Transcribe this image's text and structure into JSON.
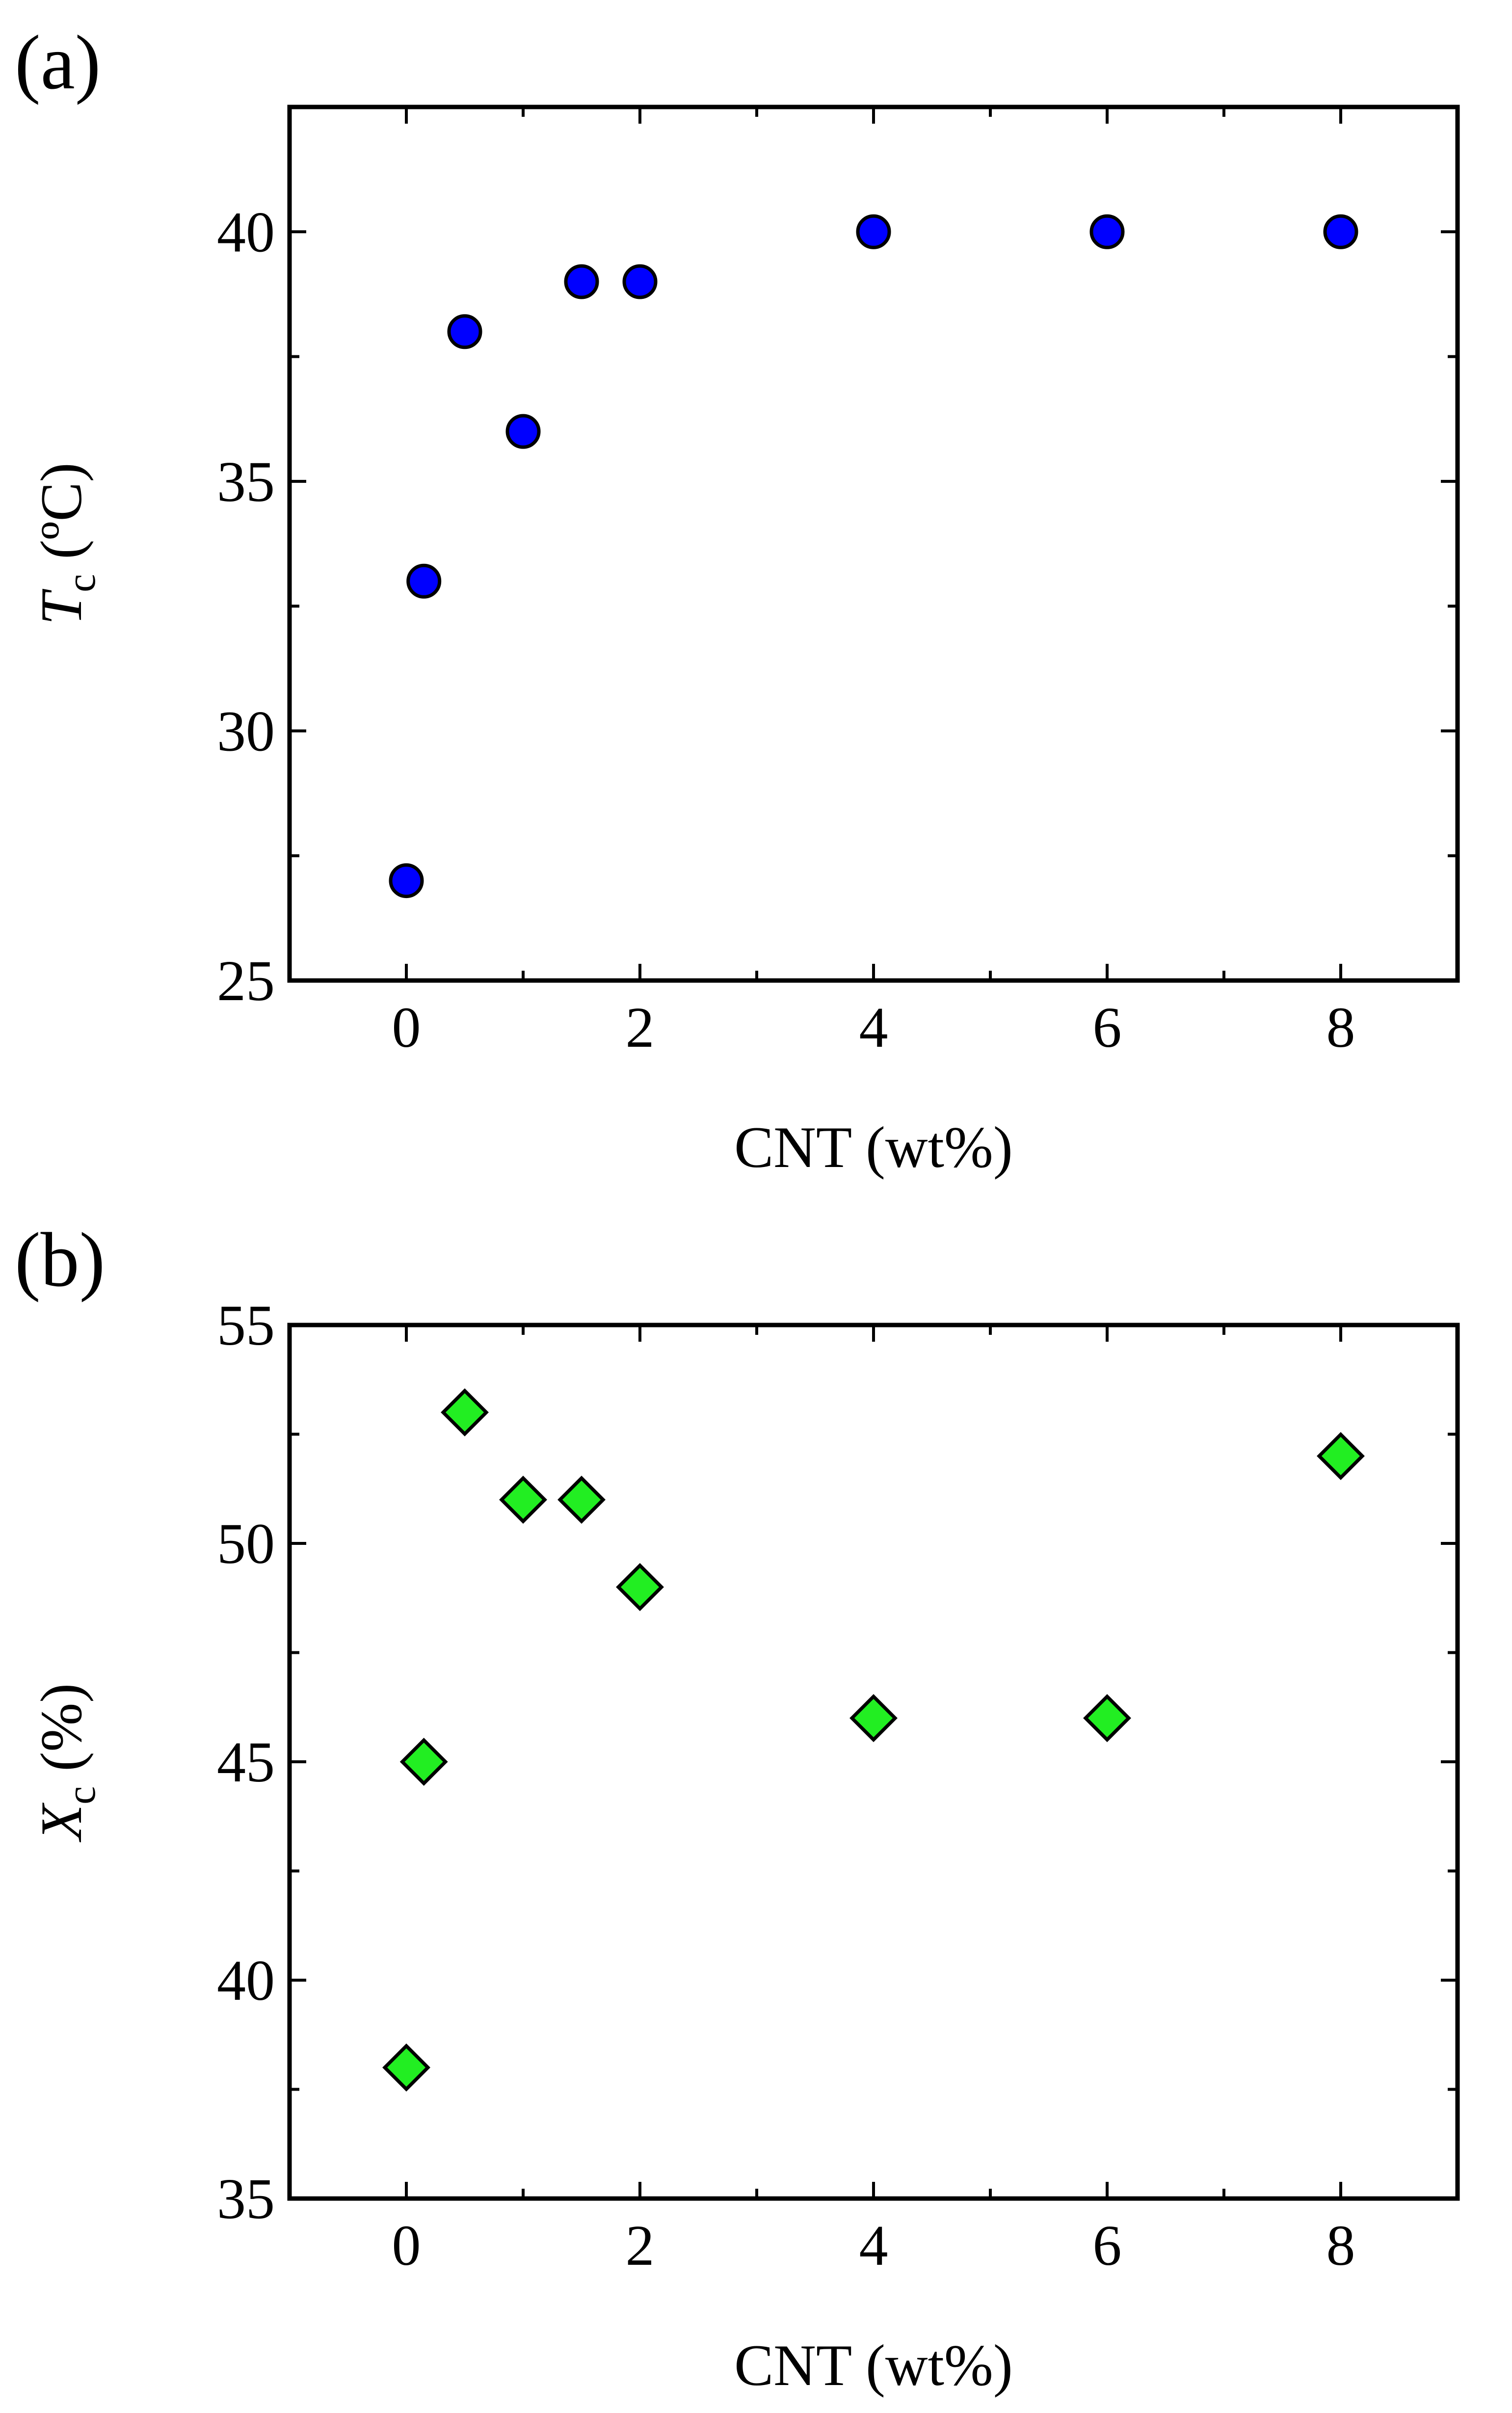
{
  "chart_data": [
    {
      "type": "scatter",
      "panel_label": "(a)",
      "title": "",
      "xlabel": "CNT (wt%)",
      "ylabel_main": "T",
      "ylabel_sub": "c",
      "ylabel_unit": "(ºC)",
      "xlim": [
        -1,
        9
      ],
      "ylim": [
        25,
        42.5
      ],
      "xticks": [
        0,
        2,
        4,
        6,
        8
      ],
      "xtick_labels": [
        "0",
        "2",
        "4",
        "6",
        "8"
      ],
      "xminor": [
        -1,
        1,
        3,
        5,
        7,
        9
      ],
      "yticks": [
        25,
        30,
        35,
        40
      ],
      "ytick_labels": [
        "25",
        "30",
        "35",
        "40"
      ],
      "yminor": [
        27.5,
        32.5,
        37.5,
        42.5
      ],
      "grid": false,
      "marker": "circle",
      "marker_color": "#0000ff",
      "series": [
        {
          "name": "Tc",
          "x": [
            0,
            0.15,
            0.5,
            1,
            1.5,
            2,
            4,
            6,
            8
          ],
          "y": [
            27,
            33,
            38,
            36,
            39,
            39,
            40,
            40,
            40
          ]
        }
      ]
    },
    {
      "type": "scatter",
      "panel_label": "(b)",
      "title": "",
      "xlabel": "CNT (wt%)",
      "ylabel_main": "X",
      "ylabel_sub": "c",
      "ylabel_unit": "(%)",
      "xlim": [
        -1,
        9
      ],
      "ylim": [
        35,
        55
      ],
      "xticks": [
        0,
        2,
        4,
        6,
        8
      ],
      "xtick_labels": [
        "0",
        "2",
        "4",
        "6",
        "8"
      ],
      "xminor": [
        -1,
        1,
        3,
        5,
        7,
        9
      ],
      "yticks": [
        35,
        40,
        45,
        50,
        55
      ],
      "ytick_labels": [
        "35",
        "40",
        "45",
        "50",
        "55"
      ],
      "yminor": [
        37.5,
        42.5,
        47.5,
        52.5
      ],
      "grid": false,
      "marker": "diamond",
      "marker_color": "#22ee22",
      "series": [
        {
          "name": "Xc",
          "x": [
            0,
            0.15,
            0.5,
            1,
            1.5,
            2,
            4,
            6,
            8
          ],
          "y": [
            38,
            45,
            53,
            51,
            51,
            49,
            46,
            46,
            52
          ]
        }
      ]
    }
  ]
}
